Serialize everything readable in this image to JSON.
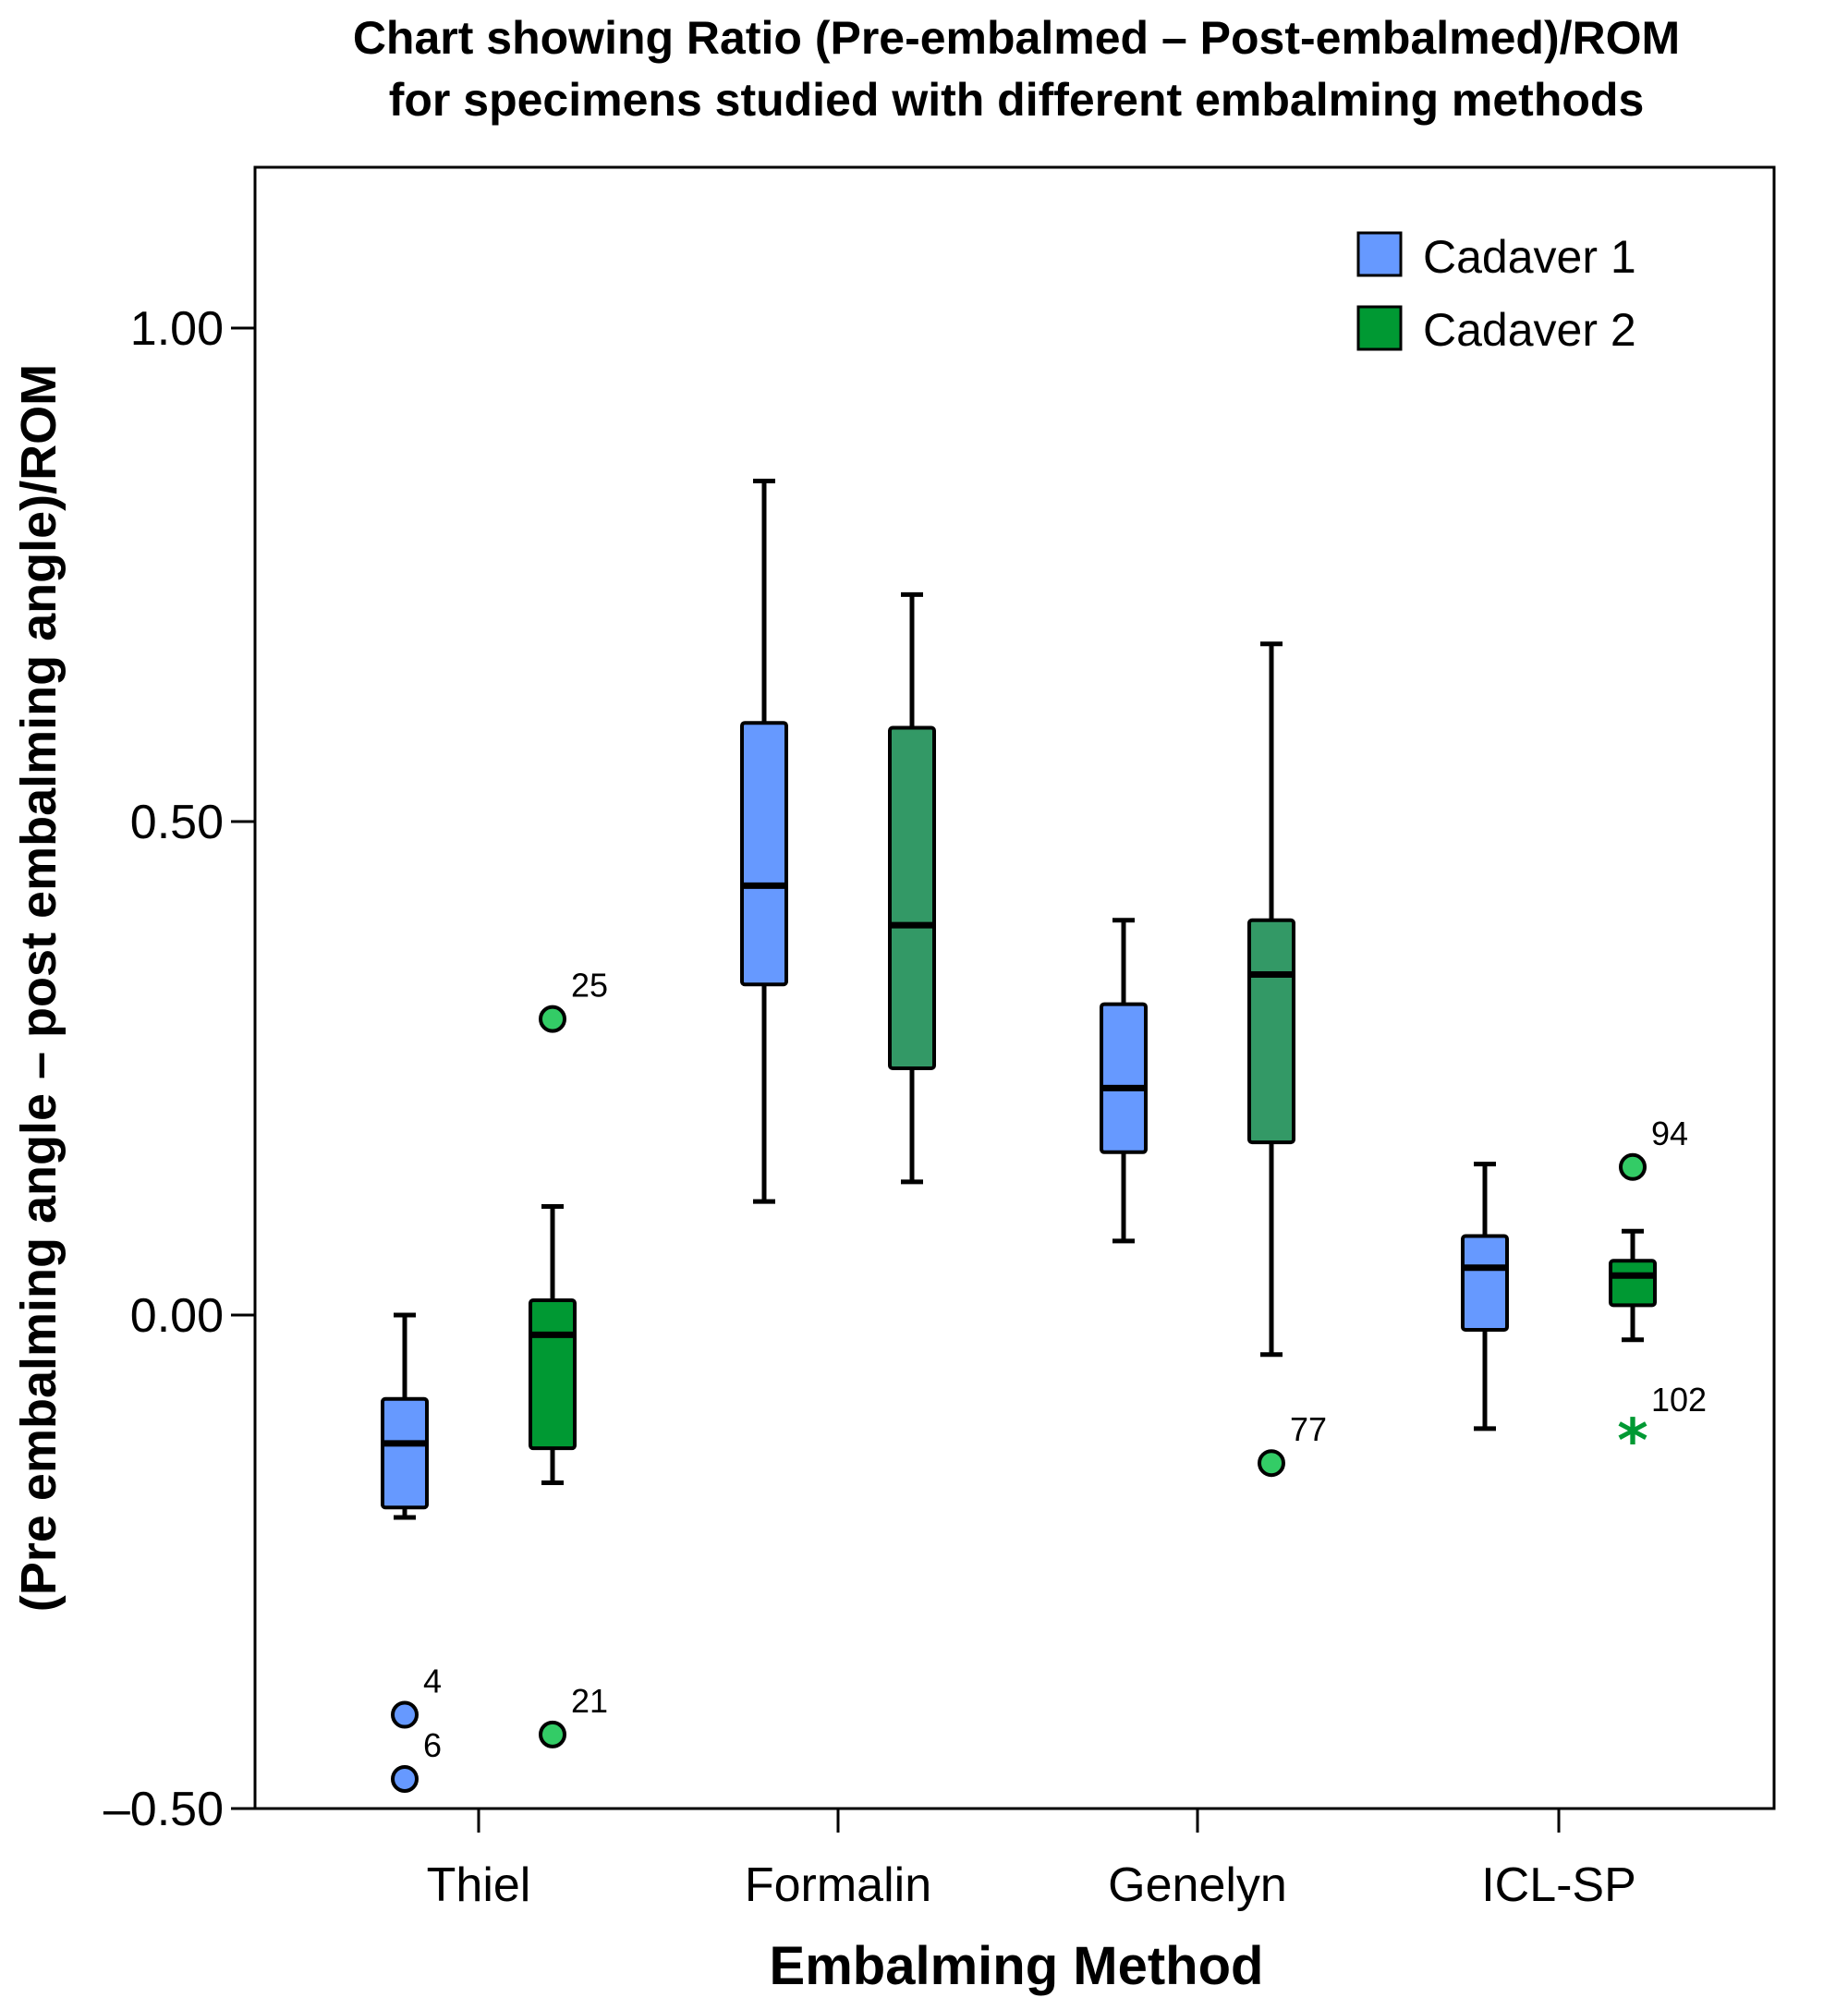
{
  "chart_data": {
    "type": "box",
    "title_lines": [
      "Chart showing Ratio (Pre-embalmed – Post-embalmed)/ROM",
      "for specimens studied with different embalming methods"
    ],
    "xlabel": "Embalming Method",
    "ylabel": "(Pre embalming angle – post embalming angle)/ROM",
    "ylim": [
      -0.5,
      1.15
    ],
    "yticks": [
      -0.5,
      0.0,
      0.5,
      1.0
    ],
    "ytick_labels": [
      "–0.50",
      "0.00",
      "0.50",
      "1.00"
    ],
    "categories": [
      "Thiel",
      "Formalin",
      "Genelyn",
      "ICL-SP"
    ],
    "legend_position": "top-right",
    "series": [
      {
        "name": "Cadaver 1",
        "color": "#6699ff",
        "boxes": [
          {
            "whisker_low": -0.205,
            "q1": -0.195,
            "median": -0.13,
            "q3": -0.085,
            "whisker_high": 0.0
          },
          {
            "whisker_low": 0.115,
            "q1": 0.335,
            "median": 0.435,
            "q3": 0.6,
            "whisker_high": 0.845
          },
          {
            "whisker_low": 0.075,
            "q1": 0.165,
            "median": 0.23,
            "q3": 0.315,
            "whisker_high": 0.4
          },
          {
            "whisker_low": -0.115,
            "q1": -0.015,
            "median": 0.048,
            "q3": 0.08,
            "whisker_high": 0.153
          }
        ],
        "outliers": [
          {
            "category": "Thiel",
            "value": -0.405,
            "label": "4",
            "marker": "circle"
          },
          {
            "category": "Thiel",
            "value": -0.47,
            "label": "6",
            "marker": "circle"
          }
        ]
      },
      {
        "name": "Cadaver 2",
        "color": "#339966",
        "boxes": [
          {
            "whisker_low": -0.17,
            "q1": -0.135,
            "median": -0.02,
            "q3": 0.015,
            "whisker_high": 0.11,
            "color": "#009933"
          },
          {
            "whisker_low": 0.135,
            "q1": 0.25,
            "median": 0.395,
            "q3": 0.595,
            "whisker_high": 0.73
          },
          {
            "whisker_low": -0.04,
            "q1": 0.175,
            "median": 0.345,
            "q3": 0.4,
            "whisker_high": 0.68
          },
          {
            "whisker_low": -0.025,
            "q1": 0.01,
            "median": 0.04,
            "q3": 0.055,
            "whisker_high": 0.085,
            "color": "#009933"
          }
        ],
        "outliers": [
          {
            "category": "Thiel",
            "value": 0.3,
            "label": "25",
            "marker": "circle"
          },
          {
            "category": "Thiel",
            "value": -0.425,
            "label": "21",
            "marker": "circle"
          },
          {
            "category": "Genelyn",
            "value": -0.15,
            "label": "77",
            "marker": "circle"
          },
          {
            "category": "ICL-SP",
            "value": 0.15,
            "label": "94",
            "marker": "circle"
          },
          {
            "category": "ICL-SP",
            "value": -0.12,
            "label": "102",
            "marker": "star"
          }
        ]
      }
    ],
    "outlier_color": "#33cc66",
    "outlier_color_c1": "#6699ff"
  },
  "legend": {
    "items": [
      {
        "label": "Cadaver 1",
        "color": "#6699ff"
      },
      {
        "label": "Cadaver 2",
        "color": "#009933"
      }
    ]
  }
}
